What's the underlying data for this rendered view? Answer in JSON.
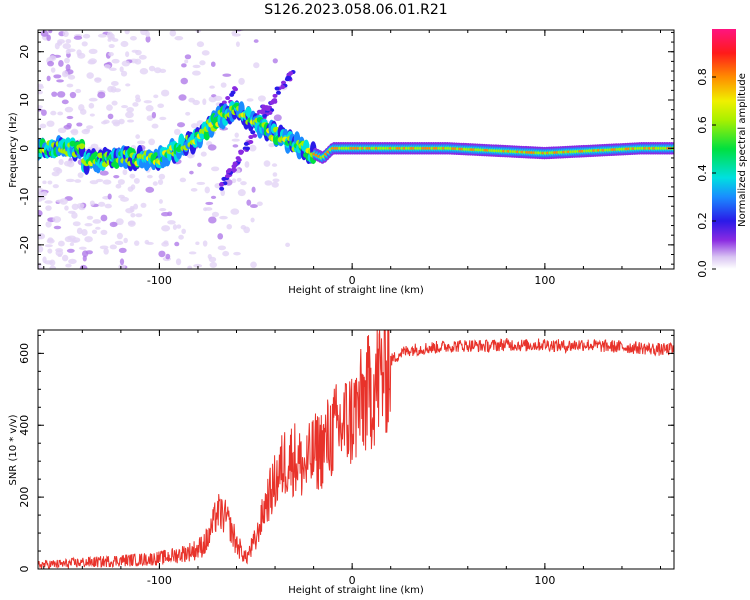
{
  "title": "S126.2023.058.06.01.R21",
  "chart_data": [
    {
      "type": "heatmap",
      "xlabel": "Height of straight line (km)",
      "ylabel": "Frequency (Hz)",
      "xlim": [
        -163,
        167
      ],
      "ylim": [
        -25,
        24.5
      ],
      "x_ticks": [
        -100,
        0,
        100
      ],
      "y_ticks": [
        -20,
        -10,
        0,
        10,
        20
      ],
      "colorbar": {
        "label": "Normalized spectral amplitude",
        "range": [
          0.0,
          1.0
        ],
        "ticks": [
          "0.0",
          "0.2",
          "0.4",
          "0.6",
          "0.8"
        ],
        "colormap": "rainbow (white-purple-blue-cyan-green-yellow-red-magenta)"
      },
      "ridge": [
        {
          "x": -140,
          "f": -3
        },
        {
          "x": -120,
          "f": -2
        },
        {
          "x": -100,
          "f": -2
        },
        {
          "x": -80,
          "f": 2
        },
        {
          "x": -70,
          "f": 6
        },
        {
          "x": -60,
          "f": 8
        },
        {
          "x": -45,
          "f": 4
        },
        {
          "x": -30,
          "f": 1
        },
        {
          "x": -15,
          "f": -2
        },
        {
          "x": -10,
          "f": 0
        },
        {
          "x": 0,
          "f": 0
        },
        {
          "x": 50,
          "f": 0
        },
        {
          "x": 100,
          "f": -1
        },
        {
          "x": 150,
          "f": 0
        },
        {
          "x": 167,
          "f": 0
        }
      ]
    },
    {
      "type": "line",
      "xlabel": "Height of straight line (km)",
      "ylabel": "SNR (10 * v/v)",
      "xlim": [
        -163,
        167
      ],
      "ylim": [
        0,
        665
      ],
      "x_ticks": [
        -100,
        0,
        100
      ],
      "y_ticks": [
        0,
        200,
        400,
        600
      ],
      "series": [
        {
          "color": "#e8322a",
          "x": [
            -163,
            -150,
            -140,
            -130,
            -120,
            -110,
            -100,
            -90,
            -80,
            -75,
            -70,
            -65,
            -60,
            -55,
            -50,
            -45,
            -40,
            -35,
            -30,
            -25,
            -20,
            -15,
            -10,
            -5,
            0,
            5,
            10,
            15,
            20,
            25,
            30,
            40,
            50,
            60,
            70,
            80,
            90,
            100,
            110,
            120,
            130,
            140,
            150,
            160,
            167
          ],
          "values": [
            12,
            14,
            18,
            20,
            24,
            26,
            30,
            40,
            55,
            80,
            160,
            140,
            70,
            30,
            80,
            180,
            240,
            300,
            310,
            280,
            320,
            340,
            380,
            400,
            420,
            460,
            500,
            540,
            580,
            600,
            610,
            615,
            620,
            622,
            620,
            625,
            622,
            625,
            620,
            625,
            620,
            618,
            615,
            610,
            612
          ]
        }
      ]
    }
  ]
}
